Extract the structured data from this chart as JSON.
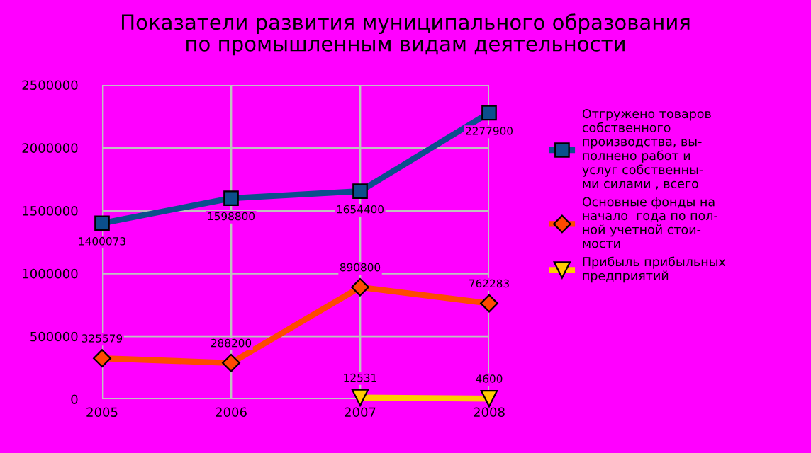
{
  "chart_data": {
    "type": "line",
    "title": "Показатели развития муниципального образования\nпо промышленным видам деятельности",
    "categories": [
      "2005",
      "2006",
      "2007",
      "2008"
    ],
    "ylim": [
      0,
      2500000
    ],
    "yticks": [
      0,
      500000,
      1000000,
      1500000,
      2000000,
      2500000
    ],
    "grid": true,
    "legend": "right",
    "series": [
      {
        "name": "Отгружено товаров\nсобственного\nпроизводства, вы-\nполнено работ и\nуслуг собственны-\nми силами , всего",
        "color": "#0b4f8c",
        "marker": "square",
        "values": [
          1400073,
          1598800,
          1654400,
          2277900
        ],
        "value_labels": [
          "1400073",
          "1598800",
          "1654400",
          "2277900"
        ]
      },
      {
        "name": "Основные фонды на\nначало  года по пол-\nной учетной стои-\nмости",
        "color": "#ff4a00",
        "marker": "diamond",
        "values": [
          325579,
          288200,
          890800,
          762283
        ],
        "value_labels": [
          "325579",
          "288200",
          "890800",
          "762283"
        ]
      },
      {
        "name": "Прибыль прибыльных\nпредприятий",
        "color": "#ffcc00",
        "marker": "triangle",
        "values": [
          null,
          null,
          12531,
          4600
        ],
        "value_labels": [
          null,
          null,
          "12531",
          "4600"
        ]
      }
    ]
  }
}
